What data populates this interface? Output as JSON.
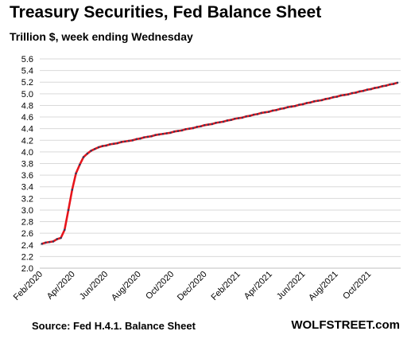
{
  "chart_data": {
    "type": "line",
    "title": "Treasury Securities, Fed Balance Sheet",
    "subtitle": "Trillion $, week ending Wednesday",
    "xlabel": "",
    "ylabel": "",
    "ylim": [
      2.0,
      5.6
    ],
    "y_ticks": [
      2.0,
      2.2,
      2.4,
      2.6,
      2.8,
      3.0,
      3.2,
      3.4,
      3.6,
      3.8,
      4.0,
      4.2,
      4.4,
      4.6,
      4.8,
      5.0,
      5.2,
      5.4,
      5.6
    ],
    "x_range": [
      "2020-02-01",
      "2021-11-30"
    ],
    "x_ticks": [
      {
        "date": "2020-02-01",
        "label": "Feb/2020"
      },
      {
        "date": "2020-04-01",
        "label": "Apr/2020"
      },
      {
        "date": "2020-06-01",
        "label": "Jun/2020"
      },
      {
        "date": "2020-08-01",
        "label": "Aug/2020"
      },
      {
        "date": "2020-10-01",
        "label": "Oct/2020"
      },
      {
        "date": "2020-12-01",
        "label": "Dec/2020"
      },
      {
        "date": "2021-02-01",
        "label": "Feb/2021"
      },
      {
        "date": "2021-04-01",
        "label": "Apr/2021"
      },
      {
        "date": "2021-06-01",
        "label": "Jun/2021"
      },
      {
        "date": "2021-08-01",
        "label": "Aug/2021"
      },
      {
        "date": "2021-10-01",
        "label": "Oct/2021"
      }
    ],
    "grid": "horizontal",
    "line_color": "#e8141b",
    "marker_color": "#3a3a5a",
    "series": [
      {
        "points": [
          [
            "2020-02-05",
            2.42
          ],
          [
            "2020-02-12",
            2.44
          ],
          [
            "2020-02-19",
            2.45
          ],
          [
            "2020-02-26",
            2.46
          ],
          [
            "2020-03-04",
            2.5
          ],
          [
            "2020-03-11",
            2.52
          ],
          [
            "2020-03-18",
            2.66
          ],
          [
            "2020-03-25",
            3.0
          ],
          [
            "2020-04-01",
            3.35
          ],
          [
            "2020-04-08",
            3.63
          ],
          [
            "2020-04-15",
            3.78
          ],
          [
            "2020-04-22",
            3.91
          ],
          [
            "2020-04-29",
            3.97
          ],
          [
            "2020-05-06",
            4.02
          ],
          [
            "2020-05-13",
            4.05
          ],
          [
            "2020-05-20",
            4.08
          ],
          [
            "2020-05-27",
            4.1
          ],
          [
            "2020-06-03",
            4.11
          ],
          [
            "2020-06-10",
            4.13
          ],
          [
            "2020-06-17",
            4.14
          ],
          [
            "2020-06-24",
            4.15
          ],
          [
            "2020-07-01",
            4.17
          ],
          [
            "2020-07-08",
            4.18
          ],
          [
            "2020-07-15",
            4.19
          ],
          [
            "2020-07-22",
            4.2
          ],
          [
            "2020-07-29",
            4.22
          ],
          [
            "2020-08-05",
            4.23
          ],
          [
            "2020-08-12",
            4.25
          ],
          [
            "2020-08-19",
            4.26
          ],
          [
            "2020-08-26",
            4.27
          ],
          [
            "2020-09-02",
            4.29
          ],
          [
            "2020-09-09",
            4.3
          ],
          [
            "2020-09-16",
            4.31
          ],
          [
            "2020-09-23",
            4.32
          ],
          [
            "2020-09-30",
            4.33
          ],
          [
            "2020-10-07",
            4.35
          ],
          [
            "2020-10-14",
            4.36
          ],
          [
            "2020-10-21",
            4.37
          ],
          [
            "2020-10-28",
            4.39
          ],
          [
            "2020-11-04",
            4.4
          ],
          [
            "2020-11-11",
            4.41
          ],
          [
            "2020-11-18",
            4.43
          ],
          [
            "2020-11-25",
            4.44
          ],
          [
            "2020-12-02",
            4.46
          ],
          [
            "2020-12-09",
            4.47
          ],
          [
            "2020-12-16",
            4.48
          ],
          [
            "2020-12-23",
            4.5
          ],
          [
            "2020-12-30",
            4.51
          ],
          [
            "2021-01-06",
            4.52
          ],
          [
            "2021-01-13",
            4.54
          ],
          [
            "2021-01-20",
            4.55
          ],
          [
            "2021-01-27",
            4.57
          ],
          [
            "2021-02-03",
            4.58
          ],
          [
            "2021-02-10",
            4.59
          ],
          [
            "2021-02-17",
            4.61
          ],
          [
            "2021-02-24",
            4.62
          ],
          [
            "2021-03-03",
            4.64
          ],
          [
            "2021-03-10",
            4.65
          ],
          [
            "2021-03-17",
            4.67
          ],
          [
            "2021-03-24",
            4.68
          ],
          [
            "2021-03-31",
            4.69
          ],
          [
            "2021-04-07",
            4.71
          ],
          [
            "2021-04-14",
            4.72
          ],
          [
            "2021-04-21",
            4.74
          ],
          [
            "2021-04-28",
            4.75
          ],
          [
            "2021-05-05",
            4.77
          ],
          [
            "2021-05-12",
            4.78
          ],
          [
            "2021-05-19",
            4.79
          ],
          [
            "2021-05-26",
            4.81
          ],
          [
            "2021-06-02",
            4.82
          ],
          [
            "2021-06-09",
            4.84
          ],
          [
            "2021-06-16",
            4.85
          ],
          [
            "2021-06-23",
            4.87
          ],
          [
            "2021-06-30",
            4.88
          ],
          [
            "2021-07-07",
            4.89
          ],
          [
            "2021-07-14",
            4.91
          ],
          [
            "2021-07-21",
            4.92
          ],
          [
            "2021-07-28",
            4.94
          ],
          [
            "2021-08-04",
            4.95
          ],
          [
            "2021-08-11",
            4.97
          ],
          [
            "2021-08-18",
            4.98
          ],
          [
            "2021-08-25",
            4.99
          ],
          [
            "2021-09-01",
            5.01
          ],
          [
            "2021-09-08",
            5.02
          ],
          [
            "2021-09-15",
            5.04
          ],
          [
            "2021-09-22",
            5.05
          ],
          [
            "2021-09-29",
            5.07
          ],
          [
            "2021-10-06",
            5.08
          ],
          [
            "2021-10-13",
            5.1
          ],
          [
            "2021-10-20",
            5.11
          ],
          [
            "2021-10-27",
            5.13
          ],
          [
            "2021-11-03",
            5.14
          ],
          [
            "2021-11-10",
            5.16
          ],
          [
            "2021-11-17",
            5.17
          ],
          [
            "2021-11-24",
            5.19
          ]
        ]
      }
    ]
  },
  "footer": {
    "source": "Source: Fed H.4.1. Balance Sheet",
    "credit": "WOLFSTREET.com"
  }
}
